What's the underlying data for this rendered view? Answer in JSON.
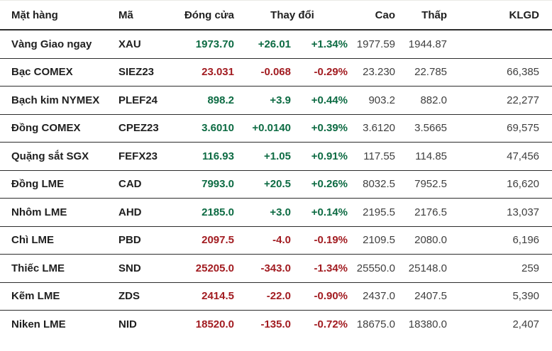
{
  "colors": {
    "up": "#0d6b43",
    "down": "#a21c21"
  },
  "table": {
    "columns": {
      "item": "Mặt hàng",
      "code": "Mã",
      "close": "Đóng cửa",
      "change": "Thay đổi",
      "high": "Cao",
      "low": "Thấp",
      "volume": "KLGD"
    },
    "rows": [
      {
        "name": "Vàng Giao ngay",
        "code": "XAU",
        "close": "1973.70",
        "change": "+26.01",
        "change_pct": "+1.34%",
        "high": "1977.59",
        "low": "1944.87",
        "volume": "",
        "trend": "up"
      },
      {
        "name": "Bạc COMEX",
        "code": "SIEZ23",
        "close": "23.031",
        "change": "-0.068",
        "change_pct": "-0.29%",
        "high": "23.230",
        "low": "22.785",
        "volume": "66,385",
        "trend": "down"
      },
      {
        "name": "Bạch kim NYMEX",
        "code": "PLEF24",
        "close": "898.2",
        "change": "+3.9",
        "change_pct": "+0.44%",
        "high": "903.2",
        "low": "882.0",
        "volume": "22,277",
        "trend": "up"
      },
      {
        "name": "Đồng COMEX",
        "code": "CPEZ23",
        "close": "3.6010",
        "change": "+0.0140",
        "change_pct": "+0.39%",
        "high": "3.6120",
        "low": "3.5665",
        "volume": "69,575",
        "trend": "up"
      },
      {
        "name": "Quặng sắt SGX",
        "code": "FEFX23",
        "close": "116.93",
        "change": "+1.05",
        "change_pct": "+0.91%",
        "high": "117.55",
        "low": "114.85",
        "volume": "47,456",
        "trend": "up"
      },
      {
        "name": "Đồng LME",
        "code": "CAD",
        "close": "7993.0",
        "change": "+20.5",
        "change_pct": "+0.26%",
        "high": "8032.5",
        "low": "7952.5",
        "volume": "16,620",
        "trend": "up"
      },
      {
        "name": "Nhôm LME",
        "code": "AHD",
        "close": "2185.0",
        "change": "+3.0",
        "change_pct": "+0.14%",
        "high": "2195.5",
        "low": "2176.5",
        "volume": "13,037",
        "trend": "up"
      },
      {
        "name": "Chì LME",
        "code": "PBD",
        "close": "2097.5",
        "change": "-4.0",
        "change_pct": "-0.19%",
        "high": "2109.5",
        "low": "2080.0",
        "volume": "6,196",
        "trend": "down"
      },
      {
        "name": "Thiếc LME",
        "code": "SND",
        "close": "25205.0",
        "change": "-343.0",
        "change_pct": "-1.34%",
        "high": "25550.0",
        "low": "25148.0",
        "volume": "259",
        "trend": "down"
      },
      {
        "name": "Kẽm LME",
        "code": "ZDS",
        "close": "2414.5",
        "change": "-22.0",
        "change_pct": "-0.90%",
        "high": "2437.0",
        "low": "2407.5",
        "volume": "5,390",
        "trend": "down"
      },
      {
        "name": "Niken LME",
        "code": "NID",
        "close": "18520.0",
        "change": "-135.0",
        "change_pct": "-0.72%",
        "high": "18675.0",
        "low": "18380.0",
        "volume": "2,407",
        "trend": "down"
      }
    ]
  }
}
